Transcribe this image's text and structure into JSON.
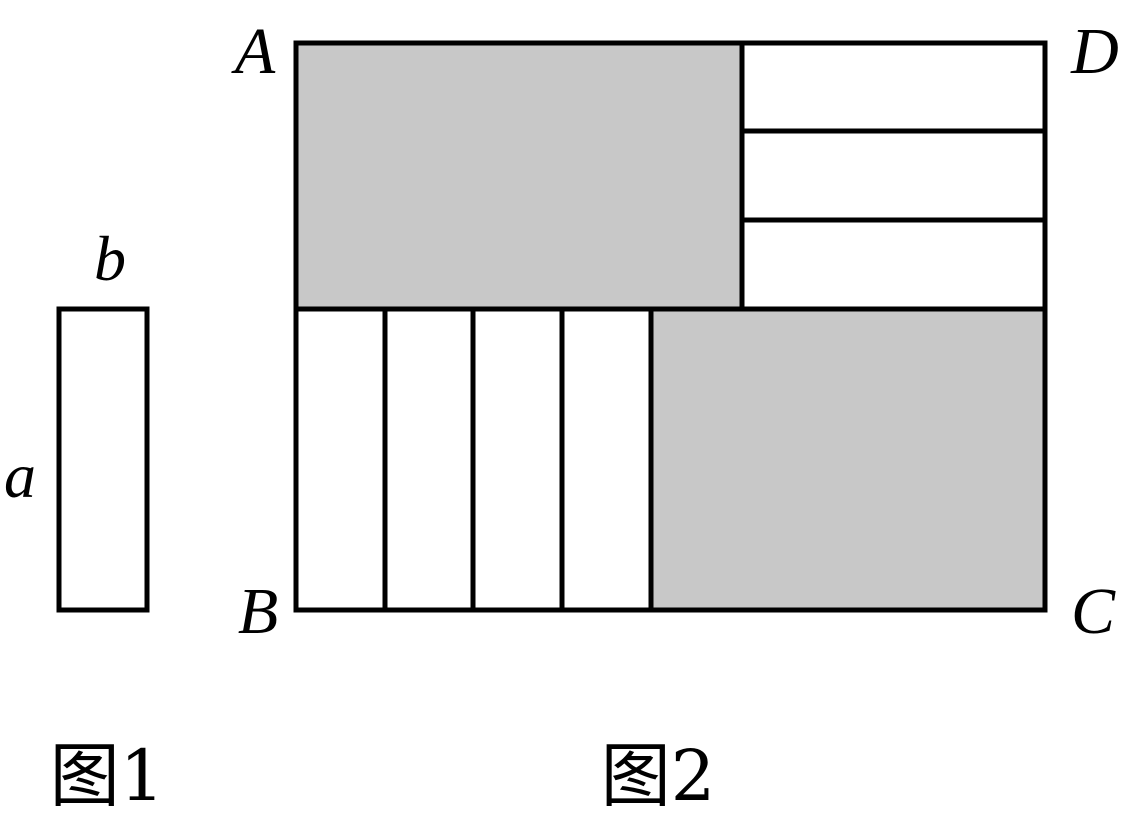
{
  "figure1": {
    "label_width": "b",
    "label_height": "a",
    "caption": "图1"
  },
  "figure2": {
    "vertices": {
      "top_left": "A",
      "top_right": "D",
      "bottom_left": "B",
      "bottom_right": "C"
    },
    "caption": "图2",
    "colors": {
      "shaded": "#c8c8c8",
      "stroke": "#000000",
      "background": "#ffffff"
    },
    "horizontal_strip_count": 3,
    "vertical_strip_count": 4
  }
}
